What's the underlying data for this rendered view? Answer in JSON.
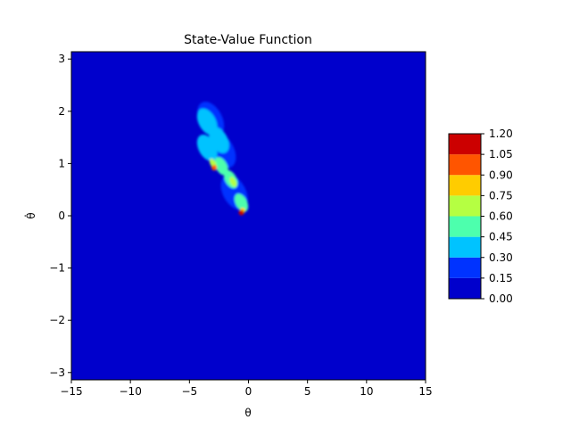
{
  "chart_data": {
    "type": "heatmap",
    "subtype": "filled-contour",
    "title": "State-Value Function",
    "xlabel": "θ",
    "ylabel": "θ̇",
    "xlim": [
      -15,
      15
    ],
    "ylim": [
      -3.14,
      3.14
    ],
    "x_ticks": [
      -15,
      -10,
      -5,
      0,
      5,
      10,
      15
    ],
    "x_tick_labels": [
      "−15",
      "−10",
      "−5",
      "0",
      "5",
      "10",
      "15"
    ],
    "y_ticks": [
      -3,
      -2,
      -1,
      0,
      1,
      2,
      3
    ],
    "y_tick_labels": [
      "−3",
      "−2",
      "−1",
      "0",
      "1",
      "2",
      "3"
    ],
    "colorbar": {
      "levels": [
        0.0,
        0.15,
        0.3,
        0.45,
        0.6,
        0.75,
        0.9,
        1.05,
        1.2
      ],
      "level_labels": [
        "0.00",
        "0.15",
        "0.30",
        "0.45",
        "0.60",
        "0.75",
        "0.90",
        "1.05",
        "1.20"
      ],
      "colors": [
        "#0000cc",
        "#0033ff",
        "#00c3ff",
        "#4dffad",
        "#b5ff42",
        "#ffcc00",
        "#ff5500",
        "#cc0000"
      ]
    },
    "background_value": 0.0,
    "regions": [
      {
        "x": -2.2,
        "y": 1.25,
        "value": 0.2
      },
      {
        "x": -3.2,
        "y": 1.85,
        "value": 0.2
      },
      {
        "x": -1.2,
        "y": 0.45,
        "value": 0.2
      },
      {
        "x": -3.5,
        "y": 1.3,
        "value": 0.4
      },
      {
        "x": -2.5,
        "y": 1.45,
        "value": 0.4
      },
      {
        "x": -3.5,
        "y": 1.8,
        "value": 0.4
      },
      {
        "x": -1.5,
        "y": 0.7,
        "value": 0.45
      },
      {
        "x": -0.6,
        "y": 0.25,
        "value": 0.45
      },
      {
        "x": -3.0,
        "y": 1.0,
        "value": 0.65
      },
      {
        "x": -1.3,
        "y": 0.65,
        "value": 0.6
      },
      {
        "x": -2.3,
        "y": 0.95,
        "value": 0.55
      },
      {
        "x": -0.5,
        "y": 0.1,
        "value": 0.8
      },
      {
        "x": -2.9,
        "y": 0.92,
        "value": 1.0
      },
      {
        "x": -0.6,
        "y": 0.06,
        "value": 1.1
      }
    ]
  }
}
